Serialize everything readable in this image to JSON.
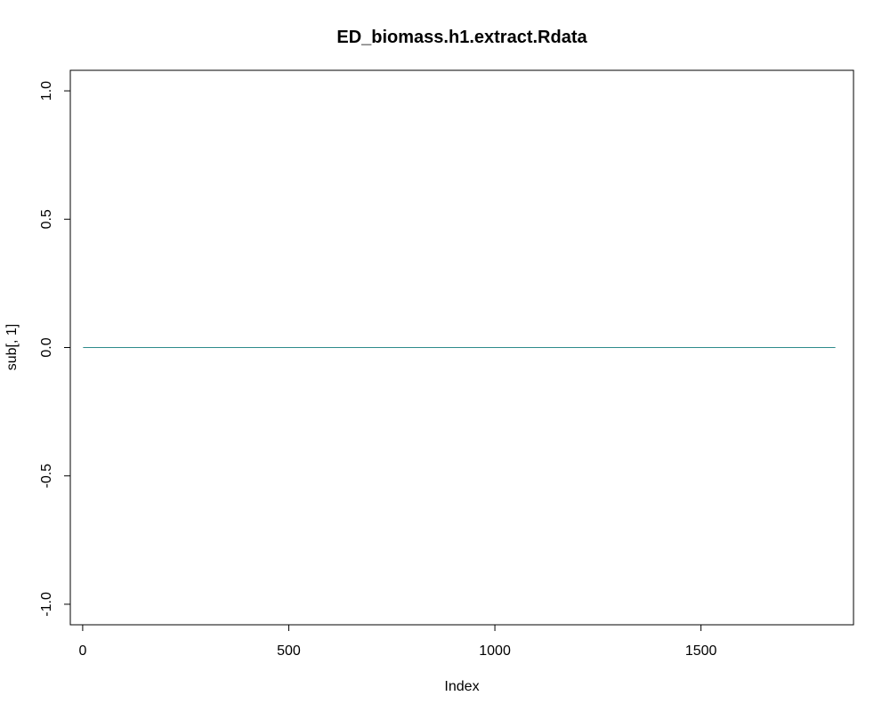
{
  "chart_data": {
    "type": "line",
    "title": "ED_biomass.h1.extract.Rdata",
    "xlabel": "Index",
    "ylabel": "sub[, 1]",
    "xlim": [
      -30,
      1870
    ],
    "ylim": [
      -1.08,
      1.08
    ],
    "x_ticks": [
      0,
      500,
      1000,
      1500
    ],
    "x_tick_labels": [
      "0",
      "500",
      "1000",
      "1500"
    ],
    "y_ticks": [
      -1.0,
      -0.5,
      0.0,
      0.5,
      1.0
    ],
    "y_tick_labels": [
      "-1.0",
      "-0.5",
      "0.0",
      "0.5",
      "1.0"
    ],
    "grid": false,
    "series": [
      {
        "color": "#2e8b8b",
        "x": [
          1,
          1826
        ],
        "values": [
          0,
          0
        ]
      }
    ]
  }
}
